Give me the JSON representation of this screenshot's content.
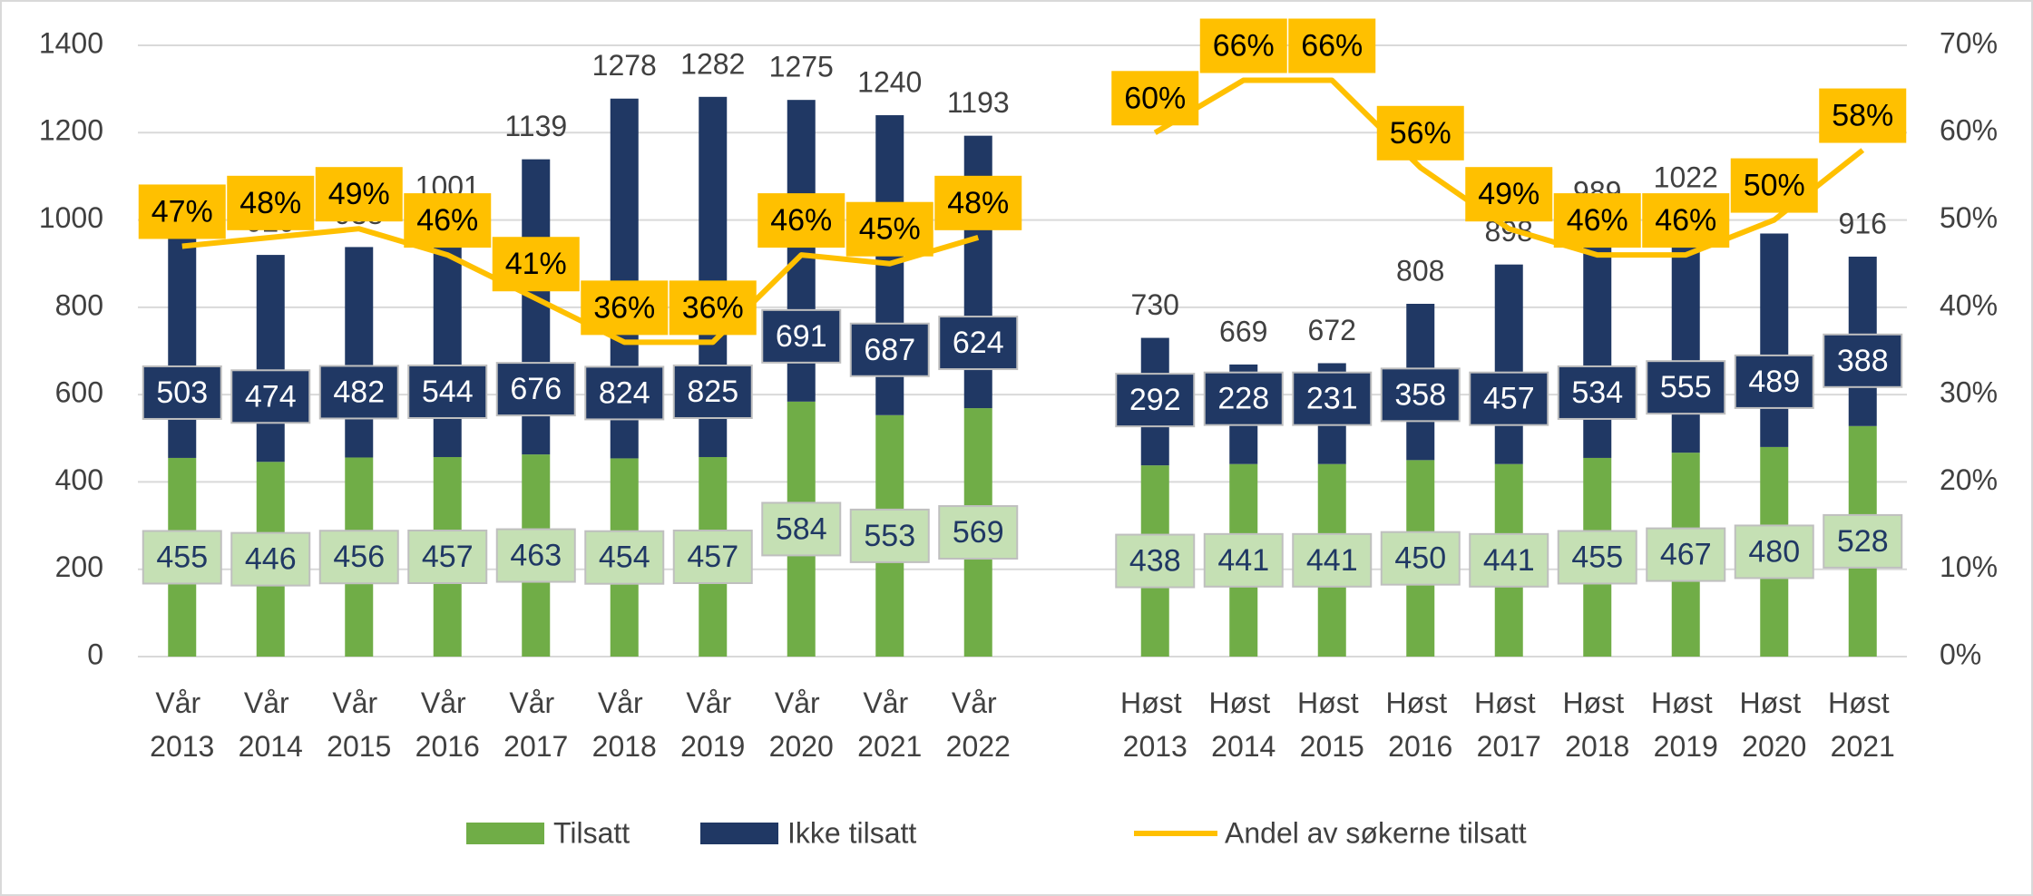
{
  "chart_data": {
    "type": "bar",
    "categories": [
      "Vår 2013",
      "Vår 2014",
      "Vår 2015",
      "Vår 2016",
      "Vår 2017",
      "Vår 2018",
      "Vår 2019",
      "Vår 2020",
      "Vår 2021",
      "Vår 2022",
      null,
      "Høst 2013",
      "Høst 2014",
      "Høst 2015",
      "Høst 2016",
      "Høst 2017",
      "Høst 2018",
      "Høst 2019",
      "Høst 2020",
      "Høst 2021"
    ],
    "series": [
      {
        "name": "Tilsatt",
        "color": "#70ad47",
        "label_color": "#c5e0b4",
        "values": [
          455,
          446,
          456,
          457,
          463,
          454,
          457,
          584,
          553,
          569,
          null,
          438,
          441,
          441,
          450,
          441,
          455,
          467,
          480,
          528
        ]
      },
      {
        "name": "Ikke tilsatt",
        "color": "#203864",
        "label_color": "#203864",
        "values": [
          503,
          474,
          482,
          544,
          676,
          824,
          825,
          691,
          687,
          624,
          null,
          292,
          228,
          231,
          358,
          457,
          534,
          555,
          489,
          388
        ]
      },
      {
        "name": "Andel av søkerne tilsatt",
        "type": "line",
        "axis": "y2",
        "color": "#ffc000",
        "values": [
          47,
          48,
          49,
          46,
          41,
          36,
          36,
          46,
          45,
          48,
          null,
          60,
          66,
          66,
          56,
          49,
          46,
          46,
          50,
          58
        ],
        "value_labels": [
          "47%",
          "48%",
          "49%",
          "46%",
          "41%",
          "36%",
          "36%",
          "46%",
          "45%",
          "48%",
          null,
          "60%",
          "66%",
          "66%",
          "56%",
          "49%",
          "46%",
          "46%",
          "50%",
          "58%"
        ]
      }
    ],
    "totals": [
      958,
      920,
      938,
      1001,
      1139,
      1278,
      1282,
      1275,
      1240,
      1193,
      null,
      730,
      669,
      672,
      808,
      898,
      989,
      1022,
      969,
      916
    ],
    "ylim": [
      0,
      1400
    ],
    "yticks": [
      0,
      200,
      400,
      600,
      800,
      1000,
      1200,
      1400
    ],
    "y2lim": [
      0,
      70
    ],
    "y2ticks": [
      {
        "value": 0,
        "label": "0%"
      },
      {
        "value": 10,
        "label": "10%"
      },
      {
        "value": 20,
        "label": "20%"
      },
      {
        "value": 30,
        "label": "30%"
      },
      {
        "value": 40,
        "label": "40%"
      },
      {
        "value": 50,
        "label": "50%"
      },
      {
        "value": 60,
        "label": "60%"
      },
      {
        "value": 70,
        "label": "70%"
      }
    ],
    "grid": true,
    "legend": "bottom"
  }
}
